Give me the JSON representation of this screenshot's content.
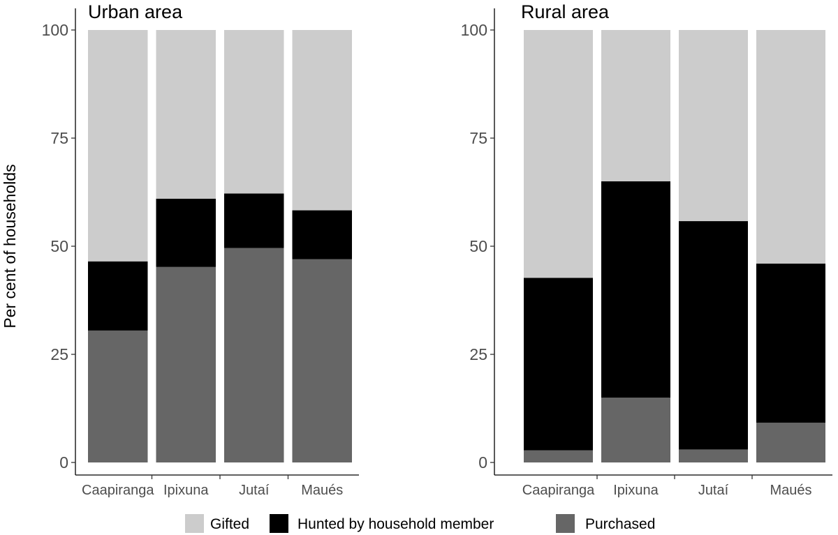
{
  "chart_data": [
    {
      "type": "bar",
      "stacked": true,
      "title": "Urban area",
      "xlabel": "",
      "ylabel": "Per cent of households",
      "ylim": [
        0,
        100
      ],
      "yticks": [
        0,
        25,
        50,
        75,
        100
      ],
      "categories": [
        "Caapiranga",
        "Ipixuna",
        "Jutaí",
        "Maués"
      ],
      "series": [
        {
          "name": "Purchased",
          "values": [
            30.5,
            45.2,
            49.6,
            47.0
          ]
        },
        {
          "name": "Hunted by household member",
          "values": [
            16.0,
            15.8,
            12.6,
            11.3
          ]
        },
        {
          "name": "Gifted",
          "values": [
            53.5,
            39.0,
            37.8,
            41.7
          ]
        }
      ]
    },
    {
      "type": "bar",
      "stacked": true,
      "title": "Rural area",
      "xlabel": "",
      "ylabel": "",
      "ylim": [
        0,
        100
      ],
      "yticks": [
        0,
        25,
        50,
        75,
        100
      ],
      "categories": [
        "Caapiranga",
        "Ipixuna",
        "Jutaí",
        "Maués"
      ],
      "series": [
        {
          "name": "Purchased",
          "values": [
            2.8,
            15.0,
            3.0,
            9.2
          ]
        },
        {
          "name": "Hunted by household member",
          "values": [
            39.9,
            50.0,
            52.8,
            36.8
          ]
        },
        {
          "name": "Gifted",
          "values": [
            57.3,
            35.0,
            44.2,
            54.0
          ]
        }
      ]
    }
  ],
  "legend": {
    "position": "bottom",
    "items": [
      {
        "label": "Gifted",
        "color": "#cccccc"
      },
      {
        "label": "Hunted by household member",
        "color": "#000000"
      },
      {
        "label": "Purchased",
        "color": "#666666"
      }
    ]
  },
  "colors": {
    "Gifted": "#cccccc",
    "Hunted by household member": "#000000",
    "Purchased": "#666666"
  }
}
